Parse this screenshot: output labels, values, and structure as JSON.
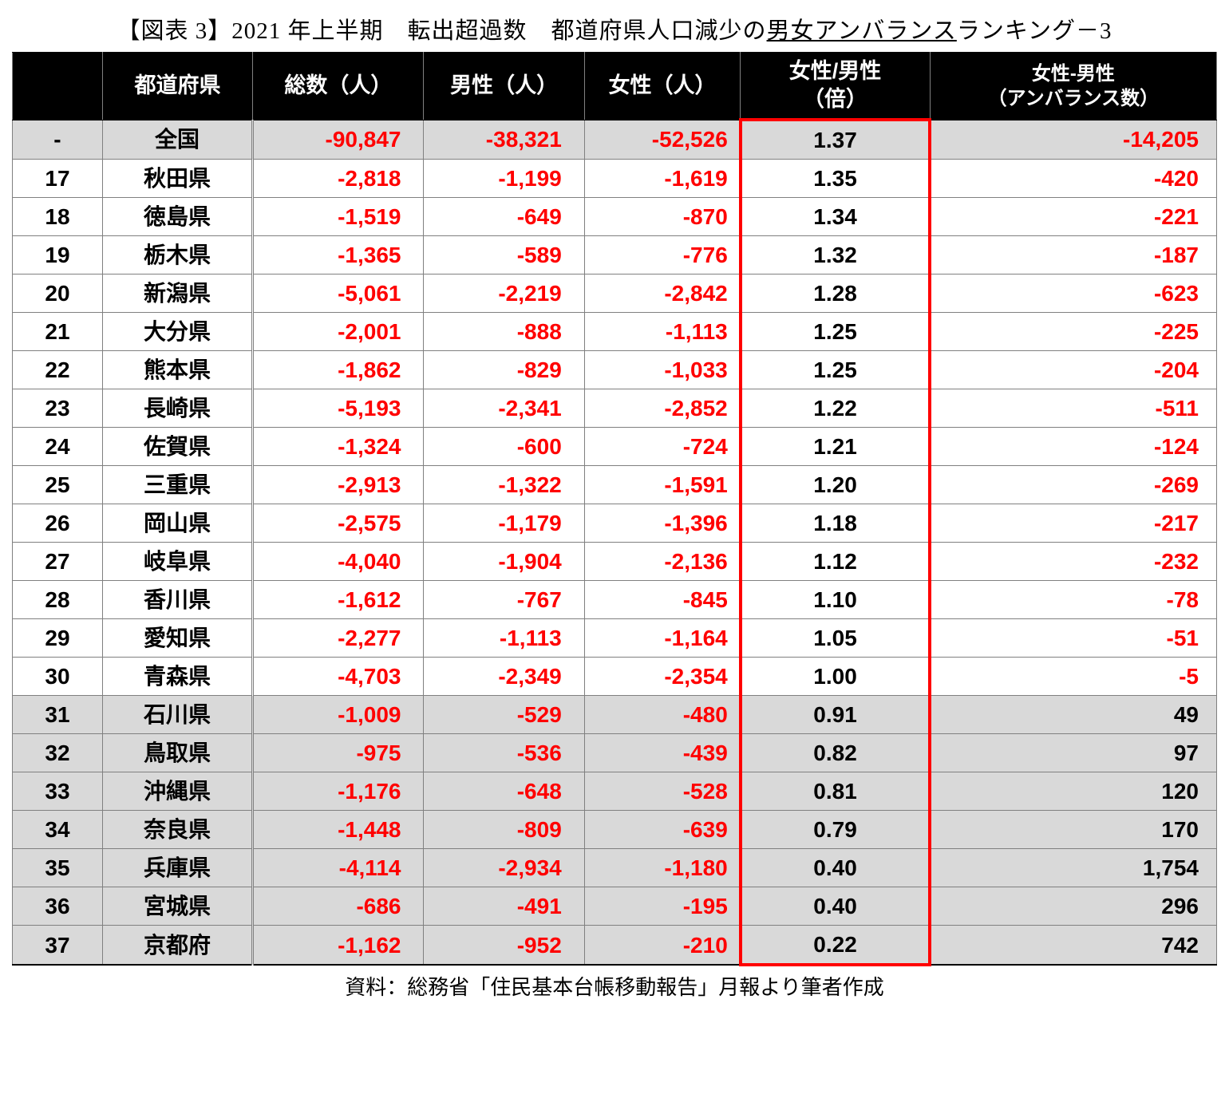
{
  "title_pre": "【図表 3】2021 年上半期　転出超過数　都道府県人口減少の",
  "title_underline": "男女アンバランス",
  "title_post": "ランキング－3",
  "source": "資料：総務省「住民基本台帳移動報告」月報より筆者作成",
  "columns": {
    "rank": "",
    "pref": "都道府県",
    "total": "総数（人）",
    "male": "男性（人）",
    "female": "女性（人）",
    "ratio": "女性/男性<br>（倍）",
    "diff": "女性-男性<br>（アンバランス数）"
  },
  "table": {
    "type": "table",
    "header_bg": "#000000",
    "header_fg": "#ffffff",
    "gray_row_bg": "#d9d9d9",
    "neg_color": "#ff0000",
    "pos_color": "#000000",
    "accent_border_color": "#ff0000",
    "col_widths_pct": [
      7.2,
      12.4,
      14.2,
      13.3,
      12.9,
      15.8,
      24.2
    ],
    "font_size_cell": 28,
    "font_size_header": 27,
    "rows": [
      {
        "rank": "-",
        "pref": "全国",
        "total": "-90,847",
        "male": "-38,321",
        "female": "-52,526",
        "ratio": "1.37",
        "diff": "-14,205",
        "gray": true
      },
      {
        "rank": "17",
        "pref": "秋田県",
        "total": "-2,818",
        "male": "-1,199",
        "female": "-1,619",
        "ratio": "1.35",
        "diff": "-420",
        "gray": false
      },
      {
        "rank": "18",
        "pref": "徳島県",
        "total": "-1,519",
        "male": "-649",
        "female": "-870",
        "ratio": "1.34",
        "diff": "-221",
        "gray": false
      },
      {
        "rank": "19",
        "pref": "栃木県",
        "total": "-1,365",
        "male": "-589",
        "female": "-776",
        "ratio": "1.32",
        "diff": "-187",
        "gray": false
      },
      {
        "rank": "20",
        "pref": "新潟県",
        "total": "-5,061",
        "male": "-2,219",
        "female": "-2,842",
        "ratio": "1.28",
        "diff": "-623",
        "gray": false
      },
      {
        "rank": "21",
        "pref": "大分県",
        "total": "-2,001",
        "male": "-888",
        "female": "-1,113",
        "ratio": "1.25",
        "diff": "-225",
        "gray": false
      },
      {
        "rank": "22",
        "pref": "熊本県",
        "total": "-1,862",
        "male": "-829",
        "female": "-1,033",
        "ratio": "1.25",
        "diff": "-204",
        "gray": false
      },
      {
        "rank": "23",
        "pref": "長崎県",
        "total": "-5,193",
        "male": "-2,341",
        "female": "-2,852",
        "ratio": "1.22",
        "diff": "-511",
        "gray": false
      },
      {
        "rank": "24",
        "pref": "佐賀県",
        "total": "-1,324",
        "male": "-600",
        "female": "-724",
        "ratio": "1.21",
        "diff": "-124",
        "gray": false
      },
      {
        "rank": "25",
        "pref": "三重県",
        "total": "-2,913",
        "male": "-1,322",
        "female": "-1,591",
        "ratio": "1.20",
        "diff": "-269",
        "gray": false
      },
      {
        "rank": "26",
        "pref": "岡山県",
        "total": "-2,575",
        "male": "-1,179",
        "female": "-1,396",
        "ratio": "1.18",
        "diff": "-217",
        "gray": false
      },
      {
        "rank": "27",
        "pref": "岐阜県",
        "total": "-4,040",
        "male": "-1,904",
        "female": "-2,136",
        "ratio": "1.12",
        "diff": "-232",
        "gray": false
      },
      {
        "rank": "28",
        "pref": "香川県",
        "total": "-1,612",
        "male": "-767",
        "female": "-845",
        "ratio": "1.10",
        "diff": "-78",
        "gray": false
      },
      {
        "rank": "29",
        "pref": "愛知県",
        "total": "-2,277",
        "male": "-1,113",
        "female": "-1,164",
        "ratio": "1.05",
        "diff": "-51",
        "gray": false
      },
      {
        "rank": "30",
        "pref": "青森県",
        "total": "-4,703",
        "male": "-2,349",
        "female": "-2,354",
        "ratio": "1.00",
        "diff": "-5",
        "gray": false
      },
      {
        "rank": "31",
        "pref": "石川県",
        "total": "-1,009",
        "male": "-529",
        "female": "-480",
        "ratio": "0.91",
        "diff": "49",
        "gray": true
      },
      {
        "rank": "32",
        "pref": "鳥取県",
        "total": "-975",
        "male": "-536",
        "female": "-439",
        "ratio": "0.82",
        "diff": "97",
        "gray": true
      },
      {
        "rank": "33",
        "pref": "沖縄県",
        "total": "-1,176",
        "male": "-648",
        "female": "-528",
        "ratio": "0.81",
        "diff": "120",
        "gray": true
      },
      {
        "rank": "34",
        "pref": "奈良県",
        "total": "-1,448",
        "male": "-809",
        "female": "-639",
        "ratio": "0.79",
        "diff": "170",
        "gray": true
      },
      {
        "rank": "35",
        "pref": "兵庫県",
        "total": "-4,114",
        "male": "-2,934",
        "female": "-1,180",
        "ratio": "0.40",
        "diff": "1,754",
        "gray": true
      },
      {
        "rank": "36",
        "pref": "宮城県",
        "total": "-686",
        "male": "-491",
        "female": "-195",
        "ratio": "0.40",
        "diff": "296",
        "gray": true
      },
      {
        "rank": "37",
        "pref": "京都府",
        "total": "-1,162",
        "male": "-952",
        "female": "-210",
        "ratio": "0.22",
        "diff": "742",
        "gray": true
      }
    ]
  }
}
